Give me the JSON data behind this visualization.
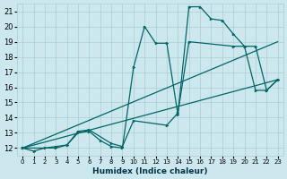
{
  "xlabel": "Humidex (Indice chaleur)",
  "bg_color": "#cce8ee",
  "grid_color": "#b0ccd4",
  "line_color": "#006666",
  "xlim": [
    -0.5,
    23.5
  ],
  "ylim": [
    11.5,
    21.5
  ],
  "xticks": [
    0,
    1,
    2,
    3,
    4,
    5,
    6,
    7,
    8,
    9,
    10,
    11,
    12,
    13,
    14,
    15,
    16,
    17,
    18,
    19,
    20,
    21,
    22,
    23
  ],
  "yticks": [
    12,
    13,
    14,
    15,
    16,
    17,
    18,
    19,
    20,
    21
  ],
  "series": [
    {
      "x": [
        0,
        1,
        2,
        3,
        4,
        5,
        6,
        7,
        8,
        9,
        10,
        11,
        12,
        13,
        14,
        15,
        16,
        17,
        18,
        19,
        20,
        21,
        22,
        23
      ],
      "y": [
        12,
        11.8,
        12.0,
        12.1,
        12.2,
        13.0,
        13.1,
        12.5,
        12.1,
        12.0,
        17.3,
        20.0,
        18.9,
        18.9,
        14.2,
        21.3,
        21.3,
        20.5,
        20.4,
        19.5,
        18.7,
        18.7,
        15.8,
        16.5
      ],
      "has_markers": true
    },
    {
      "x": [
        0,
        3,
        4,
        5,
        6,
        8,
        9,
        10,
        13,
        14,
        15,
        19,
        20,
        21,
        22,
        23
      ],
      "y": [
        12,
        12.0,
        12.2,
        13.1,
        13.2,
        12.3,
        12.1,
        13.8,
        13.5,
        14.3,
        19.0,
        18.7,
        18.7,
        15.8,
        15.8,
        16.5
      ],
      "has_markers": true
    },
    {
      "x": [
        0,
        23
      ],
      "y": [
        12.0,
        19.0
      ],
      "has_markers": false
    },
    {
      "x": [
        0,
        23
      ],
      "y": [
        12.0,
        16.5
      ],
      "has_markers": false
    }
  ]
}
